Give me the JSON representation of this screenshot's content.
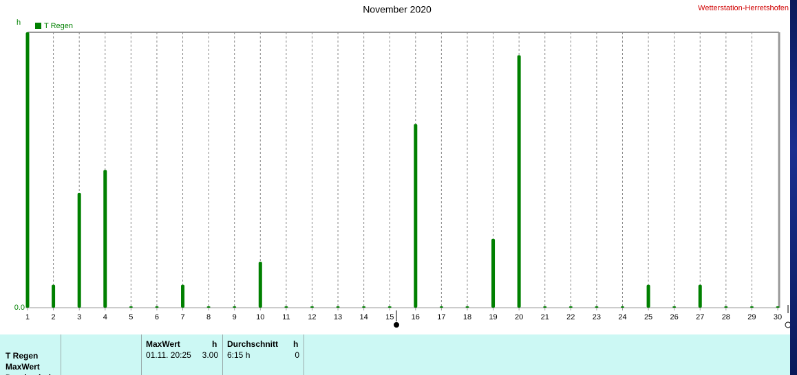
{
  "chart_data": {
    "type": "bar",
    "title": "November 2020",
    "source": "Wetterstation-Herretshofen",
    "y_unit": "h",
    "x": [
      1,
      2,
      3,
      4,
      5,
      6,
      7,
      8,
      9,
      10,
      11,
      12,
      13,
      14,
      15,
      16,
      17,
      18,
      19,
      20,
      21,
      22,
      23,
      24,
      25,
      26,
      27,
      28,
      29,
      30
    ],
    "series": [
      {
        "name": "T Regen",
        "color": "#008000",
        "values": [
          3.0,
          0.25,
          1.25,
          1.5,
          0,
          0,
          0.25,
          0,
          0,
          0.5,
          0,
          0,
          0,
          0,
          0,
          2.0,
          0,
          0,
          0.75,
          2.75,
          0,
          0,
          0,
          0,
          0.25,
          0,
          0.25,
          0,
          0,
          0
        ]
      }
    ],
    "xlim": [
      1,
      30
    ],
    "xticks": [
      1,
      2,
      3,
      4,
      5,
      6,
      7,
      8,
      9,
      10,
      11,
      12,
      13,
      14,
      15,
      16,
      17,
      18,
      19,
      20,
      21,
      22,
      23,
      24,
      25,
      26,
      27,
      28,
      29,
      30
    ],
    "ylim": [
      0,
      3
    ],
    "yticks": [
      {
        "value": 0,
        "label": "0.0"
      }
    ],
    "grid": true
  },
  "summary": {
    "row_labels": [
      "T Regen",
      "MaxWert",
      "Durchschnitt"
    ],
    "columns": [
      {
        "header": "MaxWert",
        "unit": "h",
        "cells": [
          "01.11.  20:25",
          "3.00"
        ]
      },
      {
        "header": "Durchschnitt",
        "unit": "h",
        "cells": [
          "6:15 h",
          "0"
        ]
      }
    ]
  }
}
